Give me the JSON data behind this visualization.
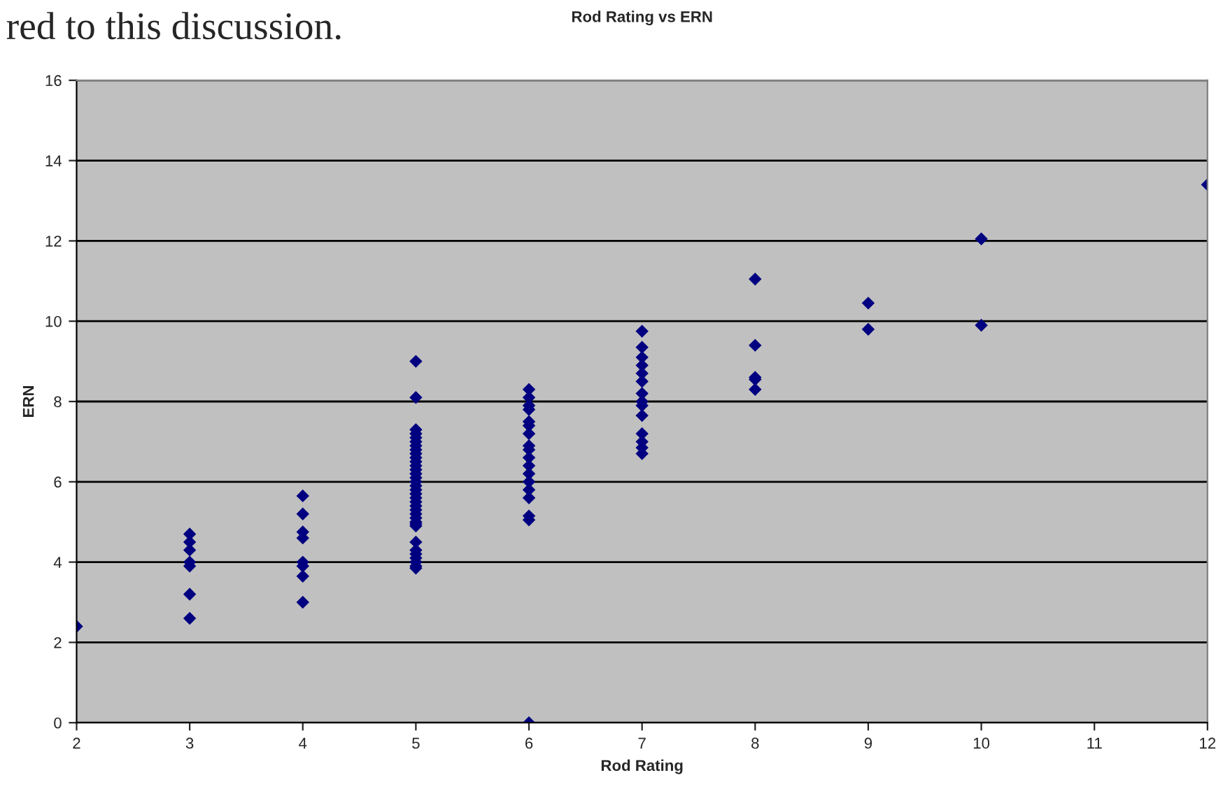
{
  "chart_data": {
    "type": "scatter",
    "title": "Rod Rating vs ERN",
    "xlabel": "Rod Rating",
    "ylabel": "ERN",
    "annotations": [
      "red to this discussion."
    ],
    "series": [
      {
        "color": "#000080",
        "x": [
          2,
          3,
          3,
          3,
          3,
          3,
          3,
          3,
          4,
          4,
          4,
          4,
          4,
          4,
          4,
          4,
          5,
          5,
          5,
          5,
          5,
          5,
          5,
          5,
          5,
          5,
          5,
          5,
          5,
          5,
          5,
          5,
          5,
          5,
          5,
          5,
          5,
          5,
          5,
          5,
          5,
          5,
          5,
          5,
          5,
          5,
          5,
          5,
          5,
          5,
          5,
          6,
          6,
          6,
          6,
          6,
          6,
          6,
          6,
          6,
          6,
          6,
          6,
          6,
          6,
          6,
          6,
          6,
          6,
          7,
          7,
          7,
          7,
          7,
          7,
          7,
          7,
          7,
          7,
          7,
          7,
          7,
          7,
          8,
          8,
          8,
          8,
          8,
          9,
          9,
          10,
          10,
          12
        ],
        "values": [
          2.4,
          4.7,
          4.5,
          4.3,
          4.0,
          3.9,
          3.2,
          2.6,
          5.65,
          5.2,
          4.75,
          4.6,
          4.0,
          3.9,
          3.65,
          3.0,
          9.0,
          8.1,
          7.3,
          7.2,
          7.1,
          7.0,
          6.9,
          6.8,
          6.7,
          6.6,
          6.5,
          6.4,
          6.3,
          6.2,
          6.1,
          6.0,
          5.9,
          5.8,
          5.7,
          5.6,
          5.5,
          5.4,
          5.3,
          5.2,
          5.1,
          5.0,
          4.9,
          4.5,
          4.3,
          4.2,
          4.0,
          3.9,
          3.85,
          4.1,
          4.95,
          8.3,
          8.1,
          7.9,
          7.8,
          7.5,
          7.4,
          7.2,
          6.9,
          6.8,
          6.6,
          6.4,
          6.2,
          6.0,
          5.8,
          5.6,
          5.15,
          5.05,
          0.0,
          9.75,
          9.35,
          9.1,
          8.9,
          8.7,
          8.5,
          8.2,
          8.0,
          7.9,
          7.65,
          7.2,
          7.0,
          6.85,
          6.7,
          11.05,
          9.4,
          8.6,
          8.55,
          8.3,
          10.45,
          9.8,
          12.05,
          9.9,
          13.4
        ]
      }
    ],
    "xlim": [
      2,
      12
    ],
    "xticks": [
      2,
      3,
      4,
      5,
      6,
      7,
      8,
      9,
      10,
      11,
      12
    ],
    "ylim": [
      0,
      16
    ],
    "yticks": [
      0,
      2,
      4,
      6,
      8,
      10,
      12,
      14,
      16
    ],
    "grid": "y",
    "marker": "diamond",
    "legend": false
  }
}
